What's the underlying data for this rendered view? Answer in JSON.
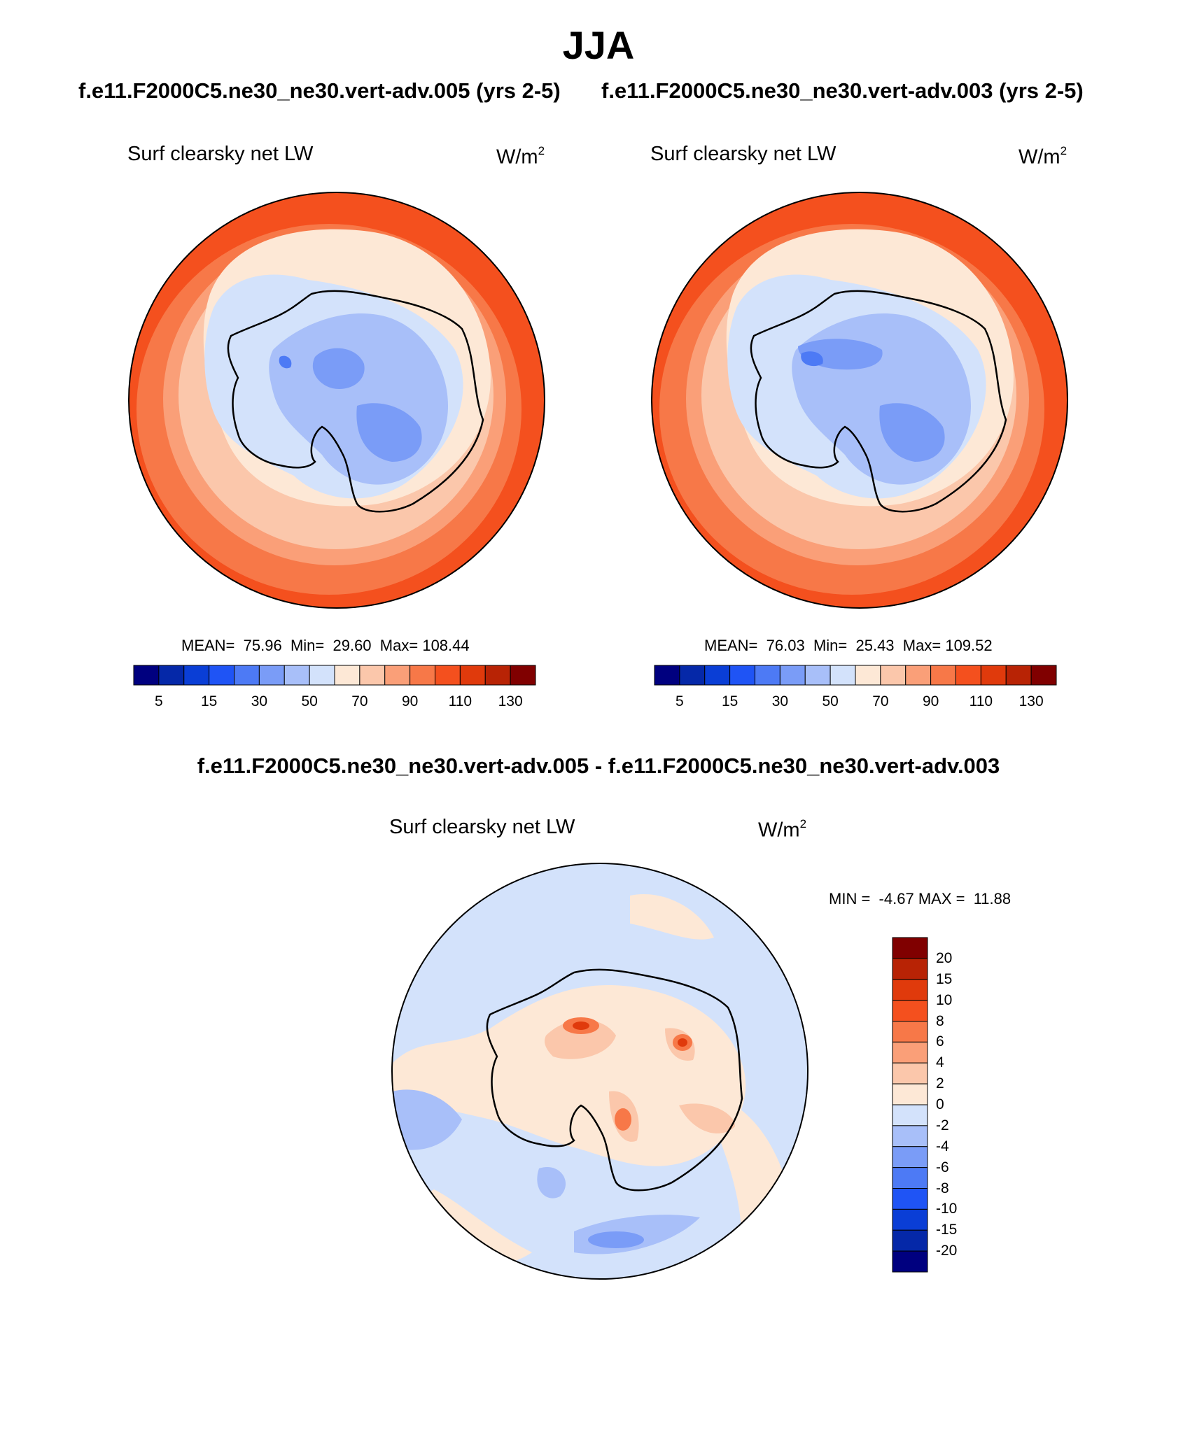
{
  "title": "JJA",
  "case_titles": {
    "left": "f.e11.F2000C5.ne30_ne30.vert-adv.005 (yrs 2-5)",
    "right": "f.e11.F2000C5.ne30_ne30.vert-adv.003 (yrs 2-5)"
  },
  "diff_title": "f.e11.F2000C5.ne30_ne30.vert-adv.005 - f.e11.F2000C5.ne30_ne30.vert-adv.003",
  "variable_label": "Surf clearsky net LW",
  "units_base": "W/m",
  "units_sup": "2",
  "panels": {
    "left": {
      "mean_label": "MEAN=",
      "mean": "75.96",
      "min_label": "Min=",
      "min": "29.60",
      "max_label": "Max=",
      "max": "108.44"
    },
    "right": {
      "mean_label": "MEAN=",
      "mean": "76.03",
      "min_label": "Min=",
      "min": "25.43",
      "max_label": "Max=",
      "max": "109.52"
    },
    "diff": {
      "min_label": "MIN =",
      "min": "-4.67",
      "max_label": "MAX =",
      "max": "11.88"
    }
  },
  "colorbar_main": {
    "colors": [
      "#00007f",
      "#0528a8",
      "#0a3ed6",
      "#1f54f5",
      "#4d7af5",
      "#7a9cf7",
      "#a8bff9",
      "#d3e2fb",
      "#fde8d6",
      "#fbc7ab",
      "#fa9f78",
      "#f77848",
      "#f4501e",
      "#e03a0c",
      "#b82305",
      "#800000"
    ],
    "tick_labels": [
      "5",
      "15",
      "30",
      "50",
      "70",
      "90",
      "110",
      "130"
    ]
  },
  "colorbar_diff": {
    "colors": [
      "#800000",
      "#b82305",
      "#e03a0c",
      "#f4501e",
      "#f77848",
      "#fa9f78",
      "#fbc7ab",
      "#fde8d6",
      "#d3e2fb",
      "#a8bff9",
      "#7a9cf7",
      "#4d7af5",
      "#1f54f5",
      "#0a3ed6",
      "#0528a8",
      "#00007f"
    ],
    "tick_labels": [
      "20",
      "15",
      "10",
      "8",
      "6",
      "4",
      "2",
      "0",
      "-2",
      "-4",
      "-6",
      "-8",
      "-10",
      "-15",
      "-20"
    ]
  },
  "map_colors": {
    "ocean_warm": "#f4501e",
    "ocean_mid": "#f77848",
    "ring1": "#fa9f78",
    "ring2": "#fbc7ab",
    "ring3": "#fde8d6",
    "ice1": "#d3e2fb",
    "ice2": "#a8bff9",
    "ice3": "#7a9cf7",
    "ice4": "#4d7af5",
    "diff_bg": "#d3e2fb",
    "diff_pos": "#fde8d6",
    "diff_pos2": "#fbc7ab",
    "diff_pos3": "#f77848",
    "diff_pos4": "#e03a0c",
    "diff_neg2": "#a8bff9",
    "diff_neg3": "#7a9cf7"
  }
}
